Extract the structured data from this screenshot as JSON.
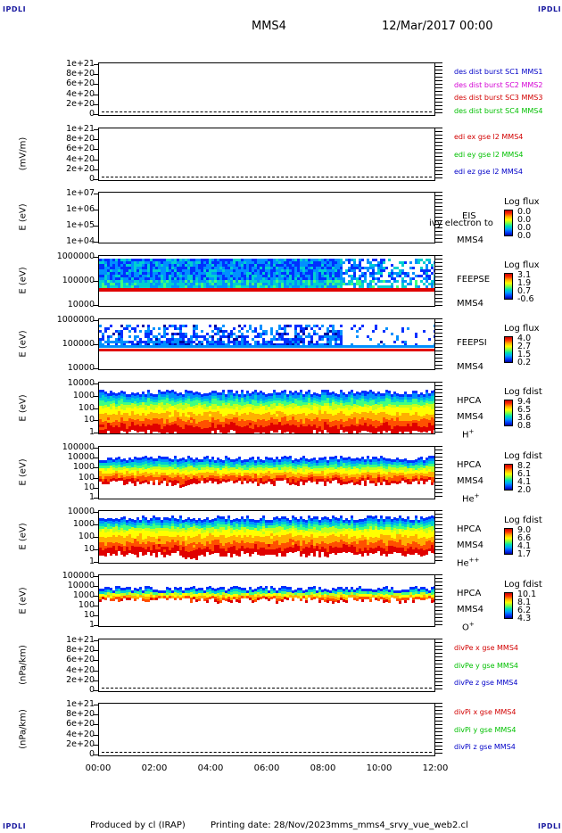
{
  "header": {
    "title": "MMS4",
    "date": "12/Mar/2017 00:00",
    "corner": "IPDLI"
  },
  "footer": {
    "produced": "Produced by cl (IRAP)",
    "printed": "Printing date: 28/Nov/2023",
    "file": "mms_mms4_srvy_vue_web2.cl"
  },
  "colors": {
    "blue": "#0000c8",
    "magenta": "#d400d4",
    "red": "#d20000",
    "green": "#00c000"
  },
  "chart_data": {
    "type": "heatmap",
    "x_ticks": [
      "00:00",
      "02:00",
      "04:00",
      "06:00",
      "08:00",
      "10:00",
      "12:00"
    ],
    "panels": [
      {
        "id": "des",
        "ylabel": "",
        "yticks": [
          "1e+21",
          "8e+20",
          "6e+20",
          "4e+20",
          "2e+20",
          "0"
        ],
        "legend": [
          {
            "text": "des dist burst SC1 MMS1",
            "color": "blue"
          },
          {
            "text": "des dist burst SC2 MMS2",
            "color": "magenta"
          },
          {
            "text": "des dist burst SC3 MMS3",
            "color": "red"
          },
          {
            "text": "des dist burst SC4 MMS4",
            "color": "green"
          }
        ]
      },
      {
        "id": "edi",
        "ylabel": "(mV/m)",
        "yticks": [
          "1e+21",
          "8e+20",
          "6e+20",
          "4e+20",
          "2e+20",
          "0"
        ],
        "legend": [
          {
            "text": "edi ex gse l2 MMS4",
            "color": "red"
          },
          {
            "text": "edi ey gse l2 MMS4",
            "color": "green"
          },
          {
            "text": "edi ez gse l2 MMS4",
            "color": "blue"
          }
        ]
      },
      {
        "id": "eis",
        "ylabel": "E (eV)",
        "yticks": [
          "1e+07",
          "1e+06",
          "1e+05",
          "1e+04"
        ],
        "instrument": "EIS",
        "spacecraft": "MMS4",
        "species": "",
        "overlay": "ivy electron to",
        "cbar_title": "Log flux",
        "cbar_values": [
          "0.0",
          "0.0",
          "0.0",
          "0.0"
        ]
      },
      {
        "id": "feepse",
        "ylabel": "E (eV)",
        "yticks": [
          "1000000",
          "100000",
          "10000"
        ],
        "instrument": "FEEPSE",
        "spacecraft": "MMS4",
        "species": "",
        "cbar_title": "Log flux",
        "cbar_values": [
          "3.1",
          "1.9",
          "0.7",
          "-0.6"
        ]
      },
      {
        "id": "feepsi",
        "ylabel": "E (eV)",
        "yticks": [
          "1000000",
          "100000",
          "10000"
        ],
        "instrument": "FEEPSI",
        "spacecraft": "MMS4",
        "species": "",
        "cbar_title": "Log flux",
        "cbar_values": [
          "4.0",
          "2.7",
          "1.5",
          "0.2"
        ]
      },
      {
        "id": "hpca_h",
        "ylabel": "E (eV)",
        "yticks": [
          "10000",
          "1000",
          "100",
          "10",
          "1"
        ],
        "instrument": "HPCA",
        "spacecraft": "MMS4",
        "species": "H",
        "charge": "+",
        "cbar_title": "Log fdist",
        "cbar_values": [
          "9.4",
          "6.5",
          "3.6",
          "0.8"
        ]
      },
      {
        "id": "hpca_he",
        "ylabel": "E (eV)",
        "yticks": [
          "100000",
          "10000",
          "1000",
          "100",
          "10",
          "1"
        ],
        "instrument": "HPCA",
        "spacecraft": "MMS4",
        "species": "He",
        "charge": "+",
        "cbar_title": "Log fdist",
        "cbar_values": [
          "8.2",
          "6.1",
          "4.1",
          "2.0"
        ]
      },
      {
        "id": "hpca_hepp",
        "ylabel": "E (eV)",
        "yticks": [
          "10000",
          "1000",
          "100",
          "10",
          "1"
        ],
        "instrument": "HPCA",
        "spacecraft": "MMS4",
        "species": "He",
        "charge": "++",
        "cbar_title": "Log fdist",
        "cbar_values": [
          "9.0",
          "6.6",
          "4.1",
          "1.7"
        ]
      },
      {
        "id": "hpca_o",
        "ylabel": "E (eV)",
        "yticks": [
          "100000",
          "10000",
          "1000",
          "100",
          "10",
          "1"
        ],
        "instrument": "HPCA",
        "spacecraft": "MMS4",
        "species": "O",
        "charge": "+",
        "cbar_title": "Log fdist",
        "cbar_values": [
          "10.1",
          "8.1",
          "6.2",
          "4.3"
        ]
      },
      {
        "id": "divpe",
        "ylabel": "(nPa/km)",
        "yticks": [
          "1e+21",
          "8e+20",
          "6e+20",
          "4e+20",
          "2e+20",
          "0"
        ],
        "legend": [
          {
            "text": "divPe x gse MMS4",
            "color": "red"
          },
          {
            "text": "divPe y gse MMS4",
            "color": "green"
          },
          {
            "text": "divPe z gse MMS4",
            "color": "blue"
          }
        ]
      },
      {
        "id": "divpi",
        "ylabel": "(nPa/km)",
        "yticks": [
          "1e+21",
          "8e+20",
          "6e+20",
          "4e+20",
          "2e+20",
          "0"
        ],
        "legend": [
          {
            "text": "divPi x gse MMS4",
            "color": "red"
          },
          {
            "text": "divPi y gse MMS4",
            "color": "green"
          },
          {
            "text": "divPi z gse MMS4",
            "color": "blue"
          }
        ]
      }
    ]
  }
}
